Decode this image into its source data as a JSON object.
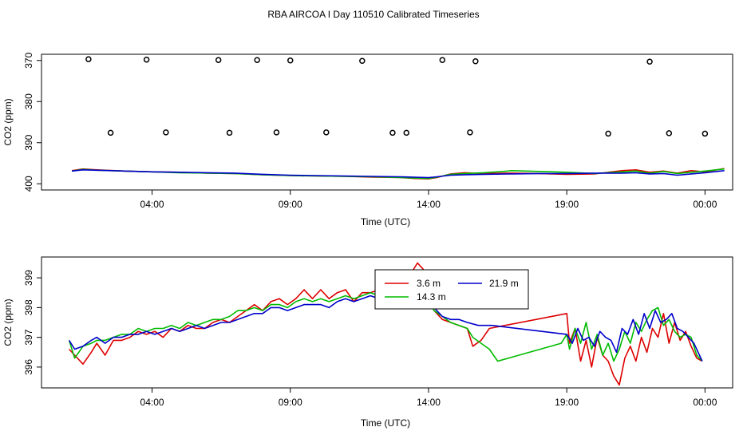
{
  "title": "RBA AIRCOA I  Day 110510  Calibrated Timeseries",
  "chart_data": [
    {
      "type": "line",
      "xlabel": "Time (UTC)",
      "ylabel": "CO2 (ppm)",
      "xlim": [
        0,
        25
      ],
      "ylim": [
        368.5,
        401.5
      ],
      "y_reversed": true,
      "xticks": [
        4,
        9,
        14,
        19,
        24
      ],
      "xtick_labels": [
        "04:00",
        "09:00",
        "14:00",
        "19:00",
        "00:00"
      ],
      "yticks": [
        370,
        380,
        390,
        400
      ],
      "ytick_labels": [
        "370",
        "380",
        "390",
        "400"
      ],
      "legend": "none",
      "series": [
        {
          "color": "#dd0000",
          "x": [
            1.1,
            1.5,
            2,
            3,
            4,
            5,
            6,
            7,
            8,
            9,
            10,
            11,
            12,
            13,
            13.5,
            14,
            14.3,
            14.8,
            15.3,
            16,
            17,
            18,
            19,
            20,
            21.0,
            21.5,
            22,
            22.5,
            23,
            23.5,
            24,
            24.7
          ],
          "y": [
            396.8,
            396.4,
            396.6,
            396.9,
            397.1,
            397.2,
            397.4,
            397.5,
            397.8,
            398.0,
            398.1,
            398.2,
            398.4,
            398.5,
            398.7,
            398.8,
            398.5,
            397.6,
            397.3,
            397.5,
            397.4,
            397.5,
            397.7,
            397.6,
            396.8,
            396.6,
            397.2,
            396.9,
            397.4,
            396.8,
            397.1,
            396.3
          ]
        },
        {
          "color": "#00bb00",
          "x": [
            1.1,
            1.5,
            2,
            3,
            4,
            5,
            6,
            7,
            8,
            9,
            10,
            11,
            12,
            13,
            13.5,
            14,
            14.3,
            14.8,
            15.3,
            16,
            16.7,
            17,
            18,
            19,
            20,
            21.0,
            21.5,
            22,
            22.5,
            23,
            23.5,
            24,
            24.7
          ],
          "y": [
            396.9,
            396.5,
            396.7,
            396.9,
            397.1,
            397.3,
            397.4,
            397.5,
            397.8,
            398.0,
            398.1,
            398.2,
            398.3,
            398.5,
            398.6,
            398.7,
            398.4,
            397.7,
            397.5,
            397.3,
            397.0,
            396.8,
            397.0,
            397.2,
            397.5,
            397.1,
            396.9,
            397.4,
            397.0,
            397.5,
            397.2,
            396.9,
            396.4
          ]
        },
        {
          "color": "#0000cc",
          "x": [
            1.1,
            1.5,
            2,
            3,
            4,
            5,
            6,
            7,
            8,
            9,
            10,
            11,
            12,
            13,
            13.5,
            14,
            14.3,
            14.8,
            15.3,
            16,
            17,
            18,
            19,
            20,
            21.0,
            21.5,
            22,
            22.5,
            23,
            23.5,
            24,
            24.7
          ],
          "y": [
            396.9,
            396.6,
            396.7,
            396.9,
            397.1,
            397.2,
            397.3,
            397.4,
            397.7,
            397.9,
            398.0,
            398.1,
            398.2,
            398.3,
            398.4,
            398.5,
            398.3,
            397.9,
            397.8,
            397.7,
            397.6,
            397.5,
            397.5,
            397.4,
            397.4,
            397.3,
            397.6,
            397.5,
            397.9,
            397.6,
            397.3,
            396.8
          ]
        }
      ],
      "points_open": {
        "x": [
          1.7,
          2.5,
          3.8,
          4.5,
          6.4,
          6.8,
          7.8,
          8.5,
          9.0,
          10.3,
          11.6,
          12.7,
          13.2,
          14.5,
          15.5,
          15.7,
          20.5,
          22.0,
          22.7,
          24.0
        ],
        "y": [
          369.7,
          387.6,
          369.8,
          387.5,
          369.9,
          387.6,
          369.9,
          387.5,
          370.0,
          387.5,
          370.1,
          387.6,
          387.6,
          369.9,
          387.5,
          370.2,
          387.8,
          370.3,
          387.7,
          387.8
        ]
      }
    },
    {
      "type": "line",
      "xlabel": "Time (UTC)",
      "ylabel": "CO2 (ppm)",
      "xlim": [
        0,
        25
      ],
      "ylim": [
        395.3,
        399.7
      ],
      "xticks": [
        4,
        9,
        14,
        19,
        24
      ],
      "xtick_labels": [
        "04:00",
        "09:00",
        "14:00",
        "19:00",
        "00:00"
      ],
      "yticks": [
        396,
        397,
        398,
        399
      ],
      "ytick_labels": [
        "396",
        "397",
        "398",
        "399"
      ],
      "legend": "top-center",
      "legend_entries": [
        {
          "label": "3.6 m",
          "color": "#dd0000"
        },
        {
          "label": "14.3 m",
          "color": "#00bb00"
        },
        {
          "label": "21.9 m",
          "color": "#0000cc"
        }
      ],
      "series": [
        {
          "color": "#dd0000",
          "x": [
            1.0,
            1.2,
            1.5,
            1.8,
            2.0,
            2.3,
            2.6,
            2.9,
            3.2,
            3.5,
            3.8,
            4.1,
            4.4,
            4.7,
            5.0,
            5.3,
            5.6,
            5.9,
            6.2,
            6.5,
            6.8,
            7.1,
            7.4,
            7.7,
            8.0,
            8.3,
            8.6,
            8.9,
            9.2,
            9.5,
            9.8,
            10.1,
            10.4,
            10.7,
            11.0,
            11.3,
            11.6,
            11.9,
            12.2,
            12.5,
            12.8,
            13.1,
            13.4,
            13.6,
            13.8,
            14.0,
            14.2,
            14.5,
            14.8,
            15.1,
            15.4,
            15.6,
            15.9,
            16.2,
            19.0,
            19.1,
            19.3,
            19.5,
            19.7,
            19.9,
            20.1,
            20.3,
            20.5,
            20.7,
            20.9,
            21.1,
            21.3,
            21.5,
            21.7,
            21.9,
            22.1,
            22.3,
            22.5,
            22.7,
            22.9,
            23.1,
            23.3,
            23.5,
            23.7,
            23.9
          ],
          "y": [
            396.6,
            396.4,
            396.1,
            396.5,
            396.8,
            396.4,
            396.9,
            396.9,
            397.0,
            397.2,
            397.1,
            397.2,
            397.0,
            397.3,
            397.2,
            397.4,
            397.3,
            397.3,
            397.5,
            397.6,
            397.5,
            397.7,
            397.9,
            398.1,
            397.9,
            398.2,
            398.3,
            398.1,
            398.3,
            398.6,
            398.3,
            398.6,
            398.3,
            398.5,
            398.6,
            398.2,
            398.5,
            398.5,
            398.6,
            398.8,
            398.5,
            398.9,
            399.2,
            399.5,
            399.3,
            398.6,
            397.9,
            397.6,
            397.5,
            397.4,
            397.3,
            396.7,
            396.9,
            397.3,
            397.8,
            396.8,
            397.3,
            396.2,
            396.9,
            396.0,
            397.0,
            396.4,
            396.2,
            395.7,
            395.4,
            396.3,
            396.7,
            396.2,
            397.0,
            396.5,
            397.3,
            397.0,
            397.8,
            396.8,
            397.5,
            396.9,
            397.2,
            396.7,
            396.3,
            396.2
          ]
        },
        {
          "color": "#00bb00",
          "x": [
            1.0,
            1.2,
            1.5,
            1.8,
            2.0,
            2.3,
            2.6,
            2.9,
            3.2,
            3.5,
            3.8,
            4.1,
            4.4,
            4.7,
            5.0,
            5.3,
            5.6,
            5.9,
            6.2,
            6.5,
            6.8,
            7.1,
            7.4,
            7.7,
            8.0,
            8.3,
            8.6,
            8.9,
            9.2,
            9.5,
            9.8,
            10.1,
            10.4,
            10.7,
            11.0,
            11.3,
            11.6,
            11.9,
            12.2,
            12.5,
            12.8,
            13.1,
            13.4,
            13.6,
            13.8,
            14.0,
            14.2,
            14.5,
            14.8,
            15.1,
            15.4,
            15.6,
            15.9,
            16.2,
            16.5,
            18.8,
            19.0,
            19.1,
            19.3,
            19.5,
            19.7,
            19.9,
            20.1,
            20.3,
            20.5,
            20.7,
            20.9,
            21.1,
            21.3,
            21.5,
            21.7,
            21.9,
            22.1,
            22.3,
            22.5,
            22.7,
            22.9,
            23.1,
            23.3,
            23.5,
            23.7,
            23.9
          ],
          "y": [
            396.9,
            396.3,
            396.7,
            396.8,
            396.9,
            396.9,
            397.0,
            397.1,
            397.1,
            397.3,
            397.2,
            397.3,
            397.3,
            397.4,
            397.3,
            397.5,
            397.4,
            397.5,
            397.6,
            397.6,
            397.7,
            397.9,
            397.9,
            398.0,
            397.9,
            398.1,
            398.1,
            398.0,
            398.2,
            398.3,
            398.2,
            398.3,
            398.2,
            398.3,
            398.4,
            398.3,
            398.4,
            398.5,
            398.4,
            398.6,
            398.5,
            398.8,
            399.0,
            399.1,
            398.9,
            398.2,
            397.9,
            397.7,
            397.5,
            397.4,
            397.3,
            397.0,
            396.8,
            396.6,
            396.2,
            396.8,
            397.1,
            396.6,
            397.3,
            396.8,
            397.5,
            396.6,
            397.1,
            396.4,
            396.8,
            396.2,
            396.6,
            397.2,
            396.8,
            397.5,
            397.2,
            397.6,
            397.9,
            398.0,
            397.4,
            397.6,
            397.2,
            397.0,
            397.1,
            397.0,
            396.4,
            396.2
          ]
        },
        {
          "color": "#0000cc",
          "x": [
            1.0,
            1.2,
            1.5,
            1.8,
            2.0,
            2.3,
            2.6,
            2.9,
            3.2,
            3.5,
            3.8,
            4.1,
            4.4,
            4.7,
            5.0,
            5.3,
            5.6,
            5.9,
            6.2,
            6.5,
            6.8,
            7.1,
            7.4,
            7.7,
            8.0,
            8.3,
            8.6,
            8.9,
            9.2,
            9.5,
            9.8,
            10.1,
            10.4,
            10.7,
            11.0,
            11.3,
            11.6,
            11.9,
            12.2,
            12.5,
            12.8,
            13.1,
            13.4,
            13.6,
            13.8,
            14.0,
            14.2,
            14.5,
            14.8,
            15.1,
            15.4,
            15.8,
            16.3,
            19.0,
            19.2,
            19.4,
            19.6,
            19.8,
            20.0,
            20.2,
            20.4,
            20.6,
            20.8,
            21.0,
            21.2,
            21.4,
            21.6,
            21.8,
            22.0,
            22.2,
            22.4,
            22.6,
            22.8,
            23.0,
            23.2,
            23.4,
            23.6,
            23.9
          ],
          "y": [
            396.9,
            396.6,
            396.7,
            396.9,
            397.0,
            396.8,
            397.0,
            397.0,
            397.1,
            397.1,
            397.2,
            397.1,
            397.2,
            397.3,
            397.2,
            397.3,
            397.4,
            397.3,
            397.4,
            397.5,
            397.5,
            397.6,
            397.7,
            397.8,
            397.8,
            398.0,
            398.0,
            397.9,
            398.0,
            398.1,
            398.1,
            398.1,
            398.0,
            398.2,
            398.3,
            398.2,
            398.3,
            398.4,
            398.3,
            398.4,
            398.4,
            398.6,
            398.7,
            398.8,
            399.0,
            398.6,
            398.0,
            397.7,
            397.6,
            397.6,
            397.5,
            397.4,
            397.4,
            397.1,
            396.8,
            397.3,
            396.9,
            397.0,
            396.7,
            397.2,
            397.0,
            396.9,
            396.5,
            397.3,
            397.1,
            397.6,
            397.1,
            397.8,
            397.3,
            397.9,
            397.5,
            397.6,
            397.8,
            397.3,
            397.2,
            397.0,
            396.8,
            396.2
          ]
        }
      ]
    }
  ]
}
